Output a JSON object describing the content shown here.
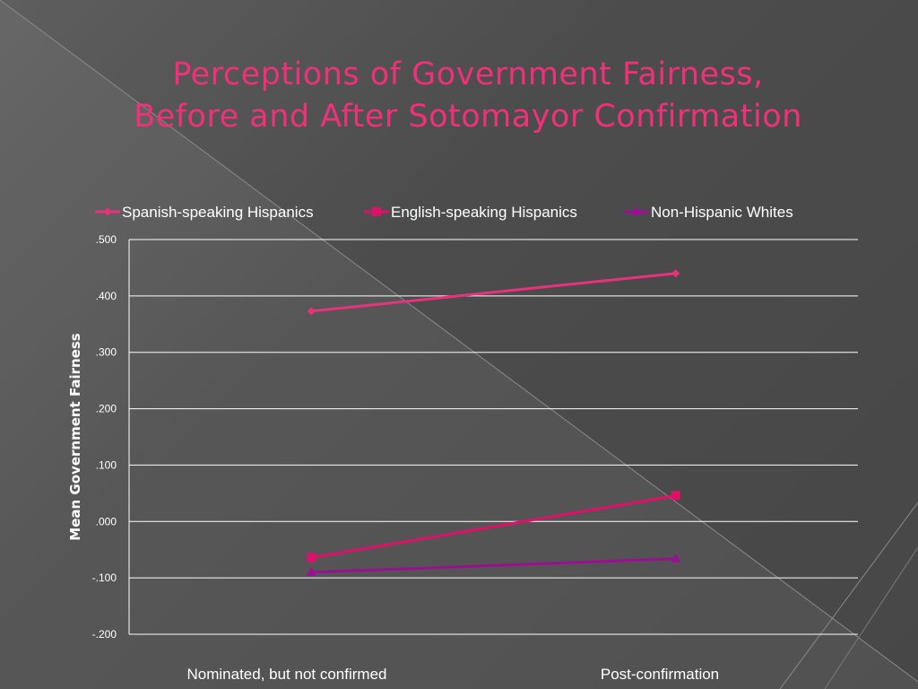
{
  "slide": {
    "title_line1": "Perceptions of Government Fairness,",
    "title_line2": "Before and After Sotomayor Confirmation"
  },
  "chart_data": {
    "type": "line",
    "categories": [
      "Nominated, but not confirmed",
      "Post-confirmation"
    ],
    "series": [
      {
        "name": "Spanish-speaking Hispanics",
        "values": [
          0.373,
          0.44
        ],
        "color": "#e8327c",
        "marker": "diamond"
      },
      {
        "name": "English-speaking Hispanics",
        "values": [
          -0.064,
          0.046
        ],
        "color": "#e0106a",
        "marker": "square"
      },
      {
        "name": "Non-Hispanic Whites",
        "values": [
          -0.09,
          -0.066
        ],
        "color": "#9b0f94",
        "marker": "triangle"
      }
    ],
    "ylabel": "Mean Government Fairness",
    "ylim": [
      -0.2,
      0.5
    ],
    "yticks": [
      0.5,
      0.4,
      0.3,
      0.2,
      0.1,
      0.0,
      -0.1,
      -0.2
    ],
    "ytick_labels": [
      ".500",
      ".400",
      ".300",
      ".200",
      ".100",
      ".000",
      "-.100",
      "-.200"
    ],
    "grid": true,
    "legend_position": "top"
  }
}
